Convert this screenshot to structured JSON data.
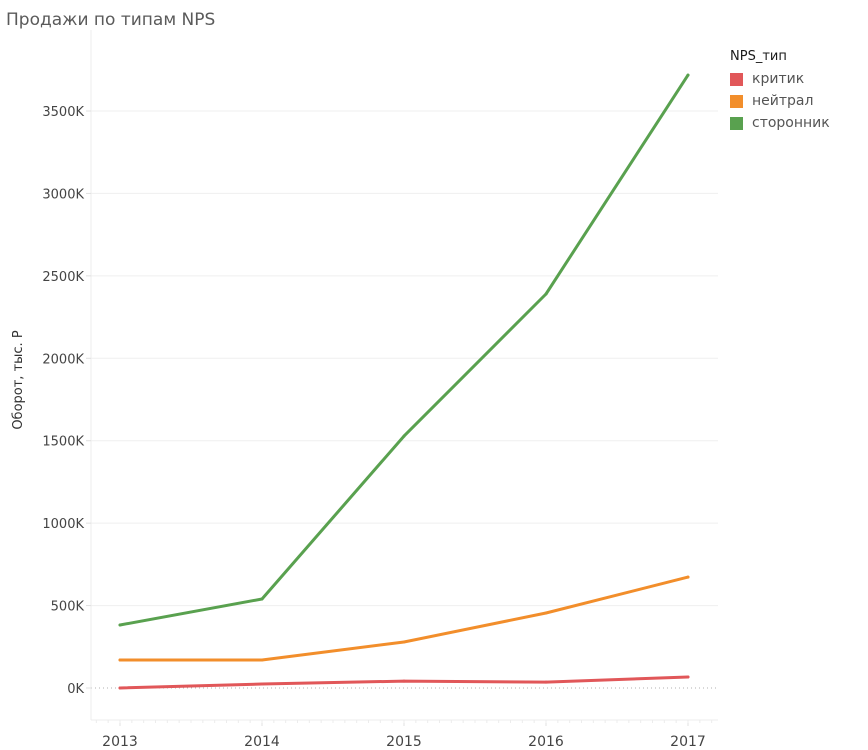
{
  "chart_data": {
    "type": "line",
    "title": "Продажи по типам NPS",
    "xlabel": "",
    "ylabel": "Оборот, тыс. Р",
    "x": [
      "2013",
      "2014",
      "2015",
      "2016",
      "2017"
    ],
    "y_ticks": [
      "0K",
      "500K",
      "1000K",
      "1500K",
      "2000K",
      "2500K",
      "3000K",
      "3500K"
    ],
    "y_tick_values": [
      0,
      500,
      1000,
      1500,
      2000,
      2500,
      3000,
      3500
    ],
    "ylim": [
      -190,
      3980
    ],
    "grid": true,
    "legend_title": "NPS_тип",
    "legend_position": "top-right",
    "series": [
      {
        "name": "критик",
        "color": "#e15759",
        "values": [
          0,
          24,
          42,
          36,
          67
        ]
      },
      {
        "name": "нейтрал",
        "color": "#f28e2b",
        "values": [
          170,
          170,
          279,
          455,
          673
        ]
      },
      {
        "name": "сторонник",
        "color": "#59a14f",
        "values": [
          382,
          540,
          1528,
          2390,
          3718
        ]
      }
    ]
  }
}
